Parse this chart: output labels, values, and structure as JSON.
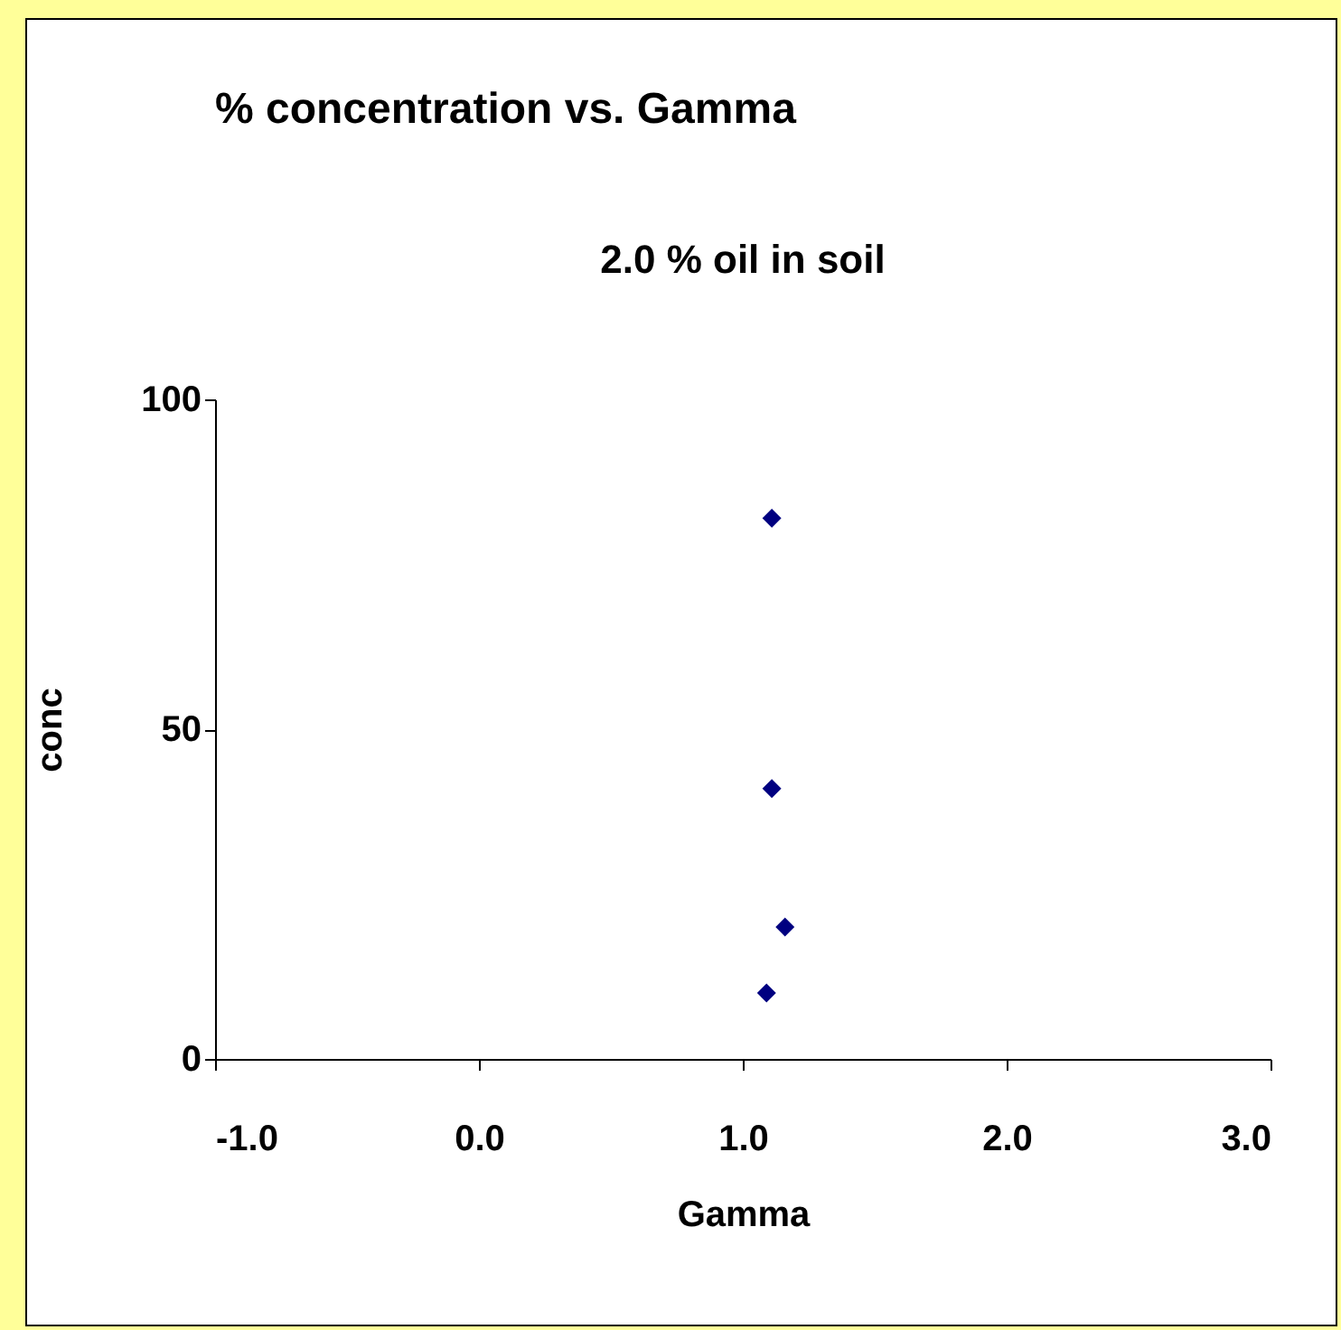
{
  "chart_data": {
    "type": "scatter",
    "title": "% concentration vs. Gamma",
    "subtitle": "2.0 % oil in soil",
    "xlabel": "Gamma",
    "ylabel": "conc",
    "x": [
      1.11,
      1.11,
      1.16,
      1.09
    ],
    "series": [
      {
        "color": "#000080",
        "values": [
          82,
          41,
          20,
          10
        ]
      }
    ],
    "xlim": [
      -1,
      3
    ],
    "xticks": [
      {
        "value": -1,
        "label": "-1.0"
      },
      {
        "value": 0,
        "label": "0.0"
      },
      {
        "value": 1,
        "label": "1.0"
      },
      {
        "value": 2,
        "label": "2.0"
      },
      {
        "value": 3,
        "label": "3.0"
      }
    ],
    "ylim": [
      0,
      100
    ],
    "yticks": [
      0,
      50,
      100
    ],
    "marker": "diamond",
    "grid": false,
    "legend": false
  }
}
